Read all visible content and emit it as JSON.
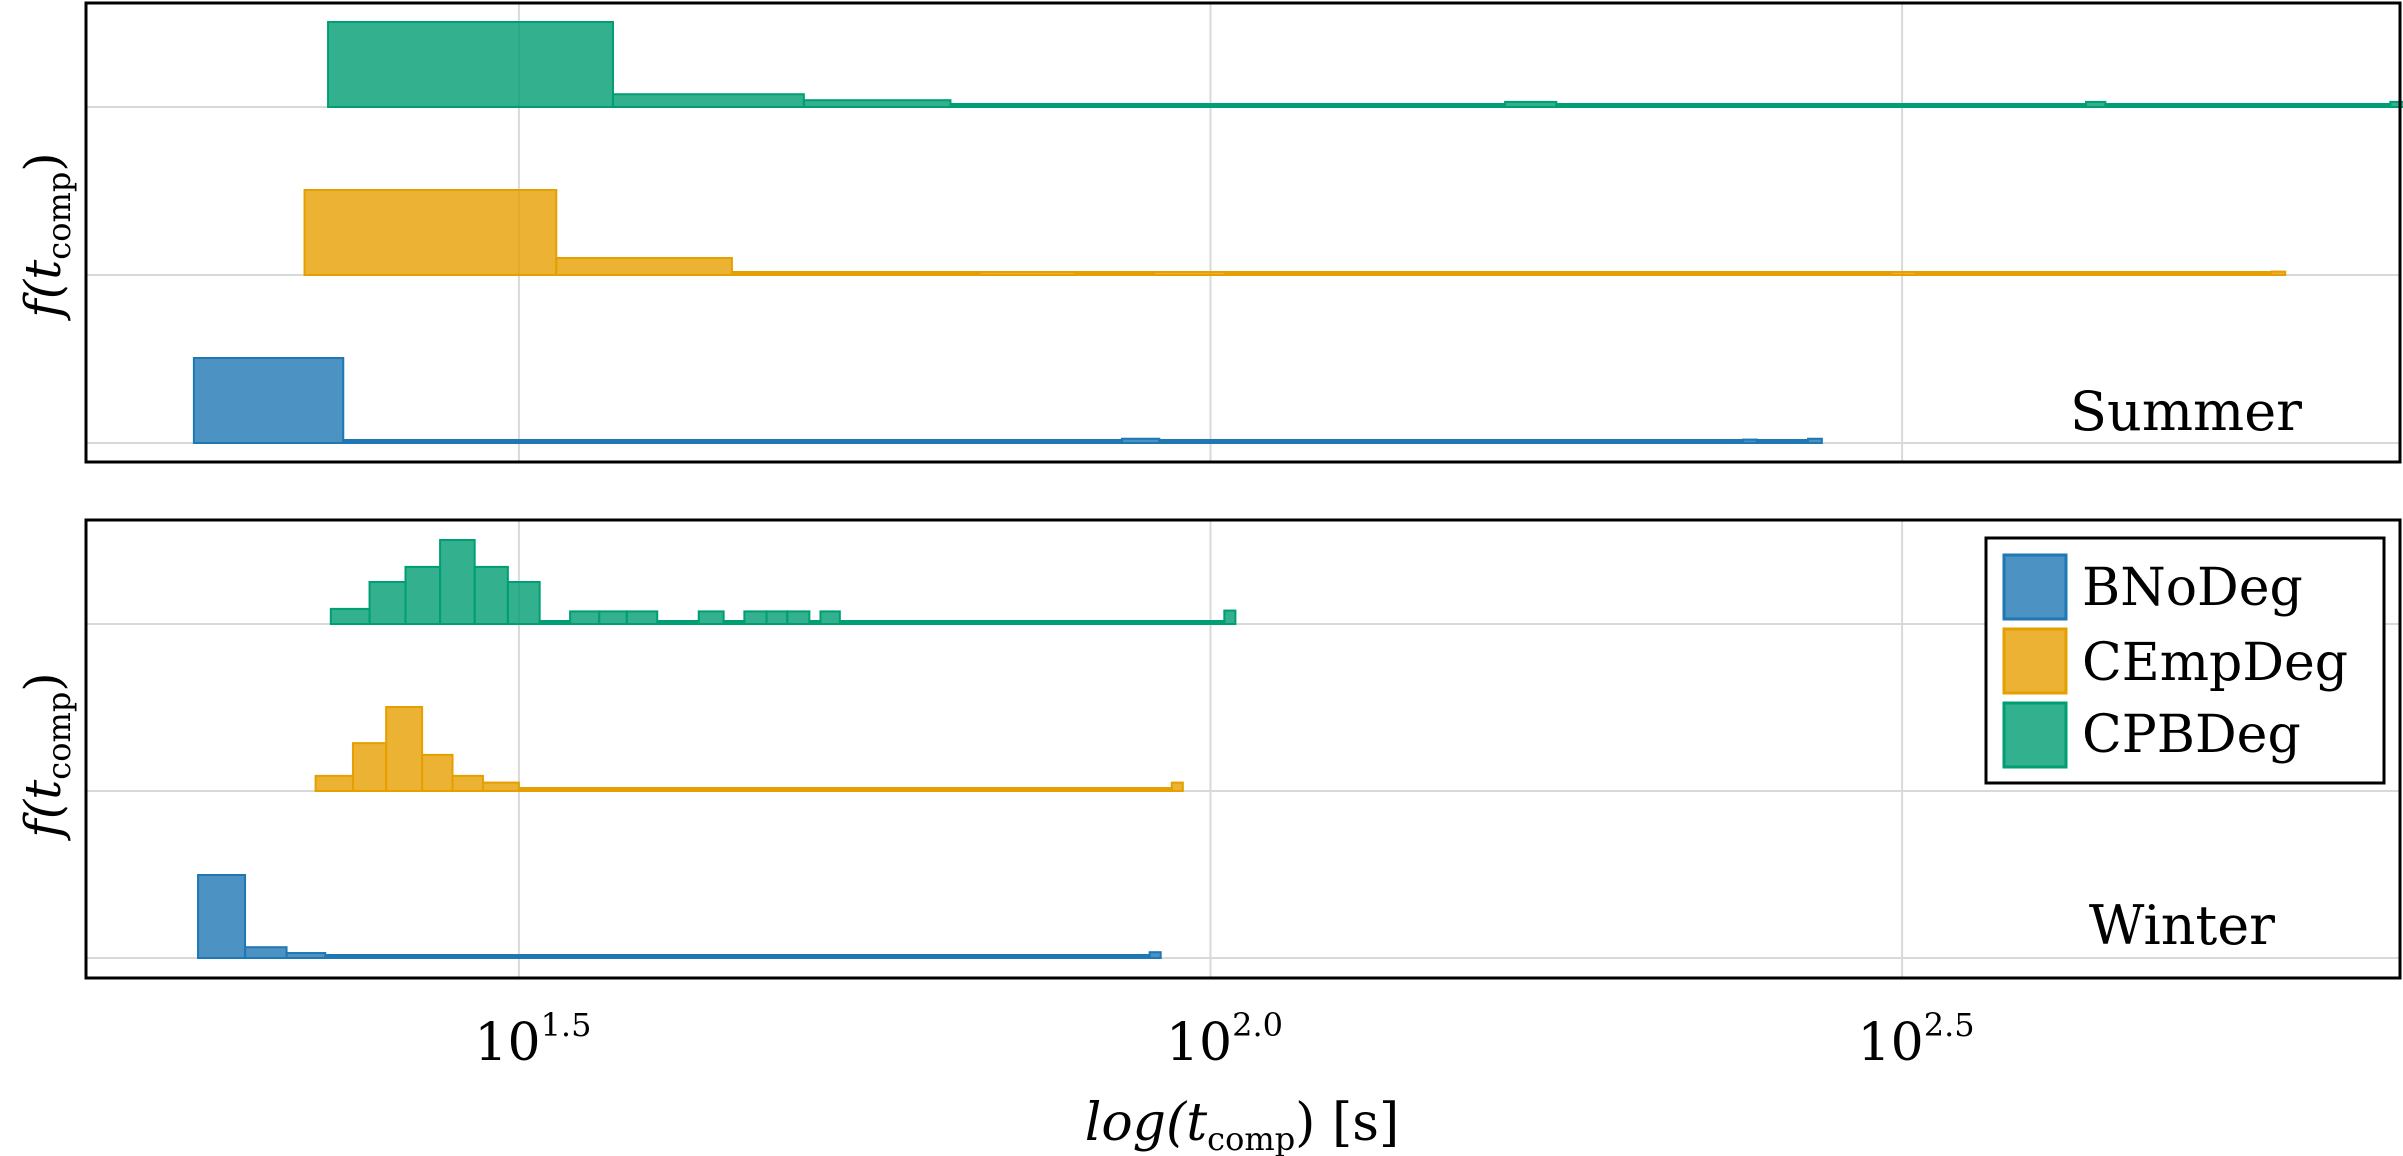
{
  "chart_data": {
    "type": "histogram",
    "xlabel_main": "log(t",
    "xlabel_sub": "comp",
    "xlabel_end": ") [s]",
    "ylabel_main": "f(t",
    "ylabel_sub": "comp",
    "ylabel_end": ")",
    "x_scale": "log10",
    "xlim_log": [
      1.187,
      2.86
    ],
    "xticks": [
      {
        "base": "10",
        "exp": "1.5",
        "value": 1.5
      },
      {
        "base": "10",
        "exp": "2.0",
        "value": 2.0
      },
      {
        "base": "10",
        "exp": "2.5",
        "value": 2.5
      }
    ],
    "grid": true,
    "legend": {
      "placement": "top-right of Winter panel",
      "entries": [
        {
          "label": "BNoDeg",
          "color": "#1f77b4"
        },
        {
          "label": "CEmpDeg",
          "color": "#e69f00"
        },
        {
          "label": "CPBDeg",
          "color": "#009e73"
        }
      ]
    },
    "panels": [
      {
        "title": "Summer",
        "series": [
          {
            "name": "BNoDeg",
            "color": "#1f77b4",
            "bins": [
              [
                1.265,
                1.373,
                1.0
              ],
              [
                1.373,
                1.936,
                0
              ],
              [
                1.936,
                1.963,
                0.05
              ],
              [
                1.963,
                2.385,
                0
              ],
              [
                2.385,
                2.395,
                0.04
              ],
              [
                2.395,
                2.432,
                0
              ],
              [
                2.432,
                2.442,
                0.05
              ]
            ]
          },
          {
            "name": "CEmpDeg",
            "color": "#e69f00",
            "bins": [
              [
                1.345,
                1.527,
                1.0
              ],
              [
                1.527,
                1.654,
                0.2
              ],
              [
                1.654,
                1.833,
                0
              ],
              [
                1.833,
                1.902,
                0.03
              ],
              [
                1.902,
                1.959,
                0
              ],
              [
                1.959,
                2.011,
                0.03
              ],
              [
                2.011,
                2.492,
                0
              ],
              [
                2.492,
                2.51,
                0.03
              ],
              [
                2.51,
                2.767,
                0
              ],
              [
                2.767,
                2.777,
                0.04
              ]
            ]
          },
          {
            "name": "CPBDeg",
            "color": "#009e73",
            "bins": [
              [
                1.362,
                1.568,
                1.0
              ],
              [
                1.568,
                1.706,
                0.15
              ],
              [
                1.706,
                1.812,
                0.08
              ],
              [
                1.812,
                2.213,
                0
              ],
              [
                2.213,
                2.25,
                0.06
              ],
              [
                2.25,
                2.633,
                0
              ],
              [
                2.633,
                2.647,
                0.06
              ],
              [
                2.647,
                2.853,
                0
              ],
              [
                2.853,
                2.863,
                0.06
              ]
            ]
          }
        ]
      },
      {
        "title": "Winter",
        "series": [
          {
            "name": "BNoDeg",
            "color": "#1f77b4",
            "bins": [
              [
                1.268,
                1.302,
                1.0
              ],
              [
                1.302,
                1.332,
                0.13
              ],
              [
                1.332,
                1.36,
                0.06
              ],
              [
                1.36,
                1.956,
                0
              ],
              [
                1.956,
                1.964,
                0.07
              ]
            ]
          },
          {
            "name": "CEmpDeg",
            "color": "#e69f00",
            "bins": [
              [
                1.353,
                1.38,
                0.18
              ],
              [
                1.38,
                1.404,
                0.57
              ],
              [
                1.404,
                1.43,
                1.0
              ],
              [
                1.43,
                1.452,
                0.43
              ],
              [
                1.452,
                1.474,
                0.18
              ],
              [
                1.474,
                1.5,
                0.1
              ],
              [
                1.5,
                1.972,
                0
              ],
              [
                1.972,
                1.98,
                0.1
              ]
            ]
          },
          {
            "name": "CPBDeg",
            "color": "#009e73",
            "bins": [
              [
                1.364,
                1.392,
                0.18
              ],
              [
                1.392,
                1.418,
                0.5
              ],
              [
                1.418,
                1.443,
                0.68
              ],
              [
                1.443,
                1.468,
                1.0
              ],
              [
                1.468,
                1.492,
                0.68
              ],
              [
                1.492,
                1.515,
                0.5
              ],
              [
                1.515,
                1.537,
                0
              ],
              [
                1.537,
                1.558,
                0.15
              ],
              [
                1.558,
                1.578,
                0.15
              ],
              [
                1.578,
                1.6,
                0.15
              ],
              [
                1.6,
                1.63,
                0
              ],
              [
                1.63,
                1.648,
                0.15
              ],
              [
                1.648,
                1.663,
                0
              ],
              [
                1.663,
                1.679,
                0.15
              ],
              [
                1.679,
                1.694,
                0.15
              ],
              [
                1.694,
                1.71,
                0.15
              ],
              [
                1.71,
                1.718,
                0
              ],
              [
                1.718,
                1.732,
                0.15
              ],
              [
                1.732,
                2.01,
                0
              ],
              [
                2.01,
                2.018,
                0.16
              ]
            ]
          }
        ]
      }
    ]
  }
}
